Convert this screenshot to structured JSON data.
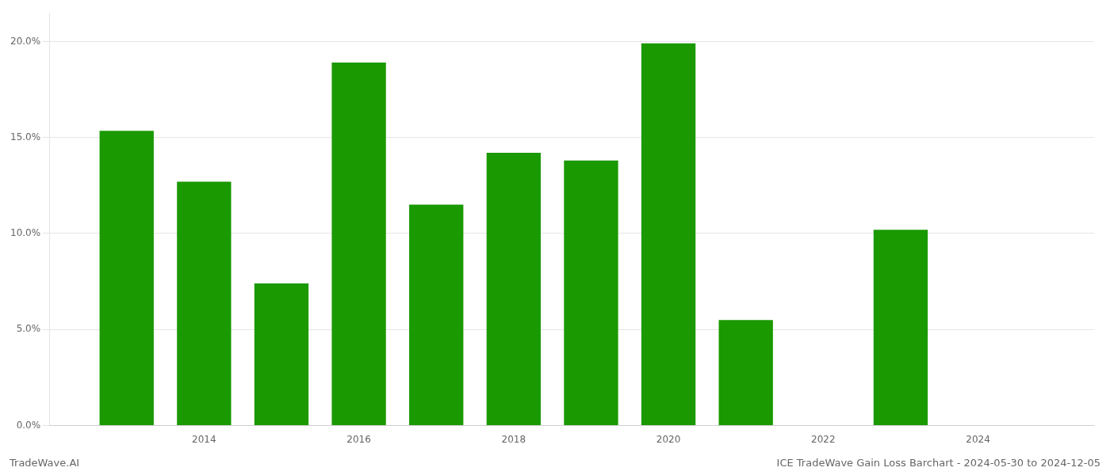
{
  "chart_data": {
    "type": "bar",
    "x": [
      2013,
      2014,
      2015,
      2016,
      2017,
      2018,
      2019,
      2020,
      2021,
      2022,
      2023
    ],
    "values": [
      0.1535,
      0.127,
      0.074,
      0.189,
      0.115,
      0.142,
      0.138,
      0.199,
      0.055,
      0.0,
      0.102
    ],
    "color": "#1a9900",
    "xlim": [
      2012.0,
      2025.5
    ],
    "xticks": [
      2014,
      2016,
      2018,
      2020,
      2022,
      2024
    ],
    "ylim": [
      0.0,
      0.215
    ],
    "yticks": [
      {
        "value": 0.0,
        "label": "0.0%"
      },
      {
        "value": 0.05,
        "label": "5.0%"
      },
      {
        "value": 0.1,
        "label": "10.0%"
      },
      {
        "value": 0.15,
        "label": "15.0%"
      },
      {
        "value": 0.2,
        "label": "20.0%"
      }
    ],
    "grid": "y",
    "annotations": [
      "TradeWave.AI",
      "ICE TradeWave Gain Loss Barchart - 2024-05-30 to 2024-12-05"
    ]
  }
}
